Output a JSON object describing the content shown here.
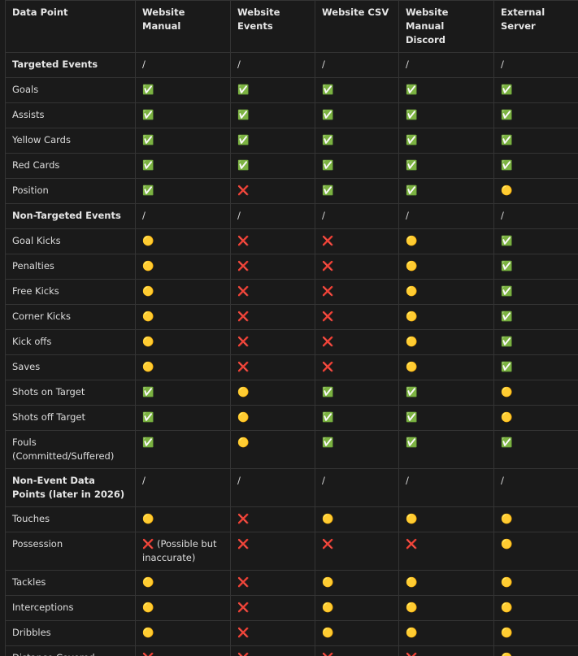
{
  "table": {
    "header": [
      "Data Point",
      "Website Manual",
      "Website Events",
      "Website CSV",
      "Website Manual Discord",
      "External Server"
    ],
    "rows": [
      [
        "Targeted Events",
        "/",
        "/",
        "/",
        "/",
        "/"
      ],
      [
        "Goals",
        "✅",
        "✅",
        "✅",
        "✅",
        "✅"
      ],
      [
        "Assists",
        "✅",
        "✅",
        "✅",
        "✅",
        "✅"
      ],
      [
        "Yellow Cards",
        "✅",
        "✅",
        "✅",
        "✅",
        "✅"
      ],
      [
        "Red Cards",
        "✅",
        "✅",
        "✅",
        "✅",
        "✅"
      ],
      [
        "Position",
        "✅",
        "❌",
        "✅",
        "✅",
        "🟡"
      ],
      [
        "Non-Targeted Events",
        "/",
        "/",
        "/",
        "/",
        "/"
      ],
      [
        "Goal Kicks",
        "🟡",
        "❌",
        "❌",
        "🟡",
        "✅"
      ],
      [
        "Penalties",
        "🟡",
        "❌",
        "❌",
        "🟡",
        "✅"
      ],
      [
        "Free Kicks",
        "🟡",
        "❌",
        "❌",
        "🟡",
        "✅"
      ],
      [
        "Corner Kicks",
        "🟡",
        "❌",
        "❌",
        "🟡",
        "✅"
      ],
      [
        "Kick offs",
        "🟡",
        "❌",
        "❌",
        "🟡",
        "✅"
      ],
      [
        "Saves",
        "🟡",
        "❌",
        "❌",
        "🟡",
        "✅"
      ],
      [
        "Shots on Target",
        "✅",
        "🟡",
        "✅",
        "✅",
        "🟡"
      ],
      [
        "Shots off Target",
        "✅",
        "🟡",
        "✅",
        "✅",
        "🟡"
      ],
      [
        "Fouls (Committed/Suffered)",
        "✅",
        "🟡",
        "✅",
        "✅",
        "✅"
      ],
      [
        "Non-Event Data Points (later in 2026)",
        "/",
        "/",
        "/",
        "/",
        "/"
      ],
      [
        "Touches",
        "🟡",
        "❌",
        "🟡",
        "🟡",
        "🟡"
      ],
      [
        "Possession",
        "❌ (Possible but inaccurate)",
        "❌",
        "❌",
        "❌",
        "🟡"
      ],
      [
        "Tackles",
        "🟡",
        "❌",
        "🟡",
        "🟡",
        "🟡"
      ],
      [
        "Interceptions",
        "🟡",
        "❌",
        "🟡",
        "🟡",
        "🟡"
      ],
      [
        "Dribbles",
        "🟡",
        "❌",
        "🟡",
        "🟡",
        "🟡"
      ],
      [
        "Distance Covered",
        "❌",
        "❌",
        "❌",
        "❌",
        "🟡"
      ]
    ]
  }
}
